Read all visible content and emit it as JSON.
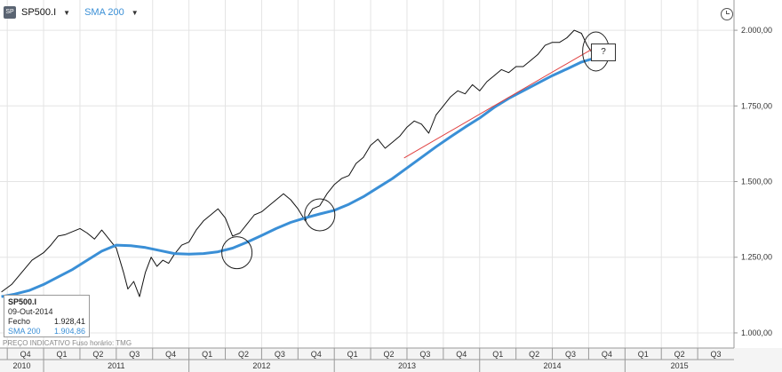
{
  "toolbar": {
    "icon_text": "SP",
    "symbol": "SP500.I",
    "indicator": "SMA 200",
    "arrow": "▼"
  },
  "info_box": {
    "symbol": "SP500.I",
    "date": "09-Out-2014",
    "close_label": "Fecho",
    "close_value": "1.928,41",
    "sma_label": "SMA 200",
    "sma_value": "1.904,86"
  },
  "footer_note": "PREÇO INDICATIVO   Fuso horário: TMG",
  "annotation": "?",
  "colors": {
    "price": "#111111",
    "sma": "#3a8fd6",
    "trend": "#e04040",
    "grid": "#e4e4e4",
    "axis": "#999999"
  },
  "chart_data": {
    "type": "line",
    "title": "",
    "ylim": [
      950,
      2100
    ],
    "y_ticks": [
      {
        "value": 1000,
        "label": "1.000,00"
      },
      {
        "value": 1250,
        "label": "1.250,00"
      },
      {
        "value": 1500,
        "label": "1.500,00"
      },
      {
        "value": 1750,
        "label": "1.750,00"
      },
      {
        "value": 2000,
        "label": "2.000,00"
      }
    ],
    "xlim": [
      2010.7,
      2015.75
    ],
    "quarters": [
      {
        "label": "Q4",
        "start": 2010.75
      },
      {
        "label": "Q1",
        "start": 2011.0
      },
      {
        "label": "Q2",
        "start": 2011.25
      },
      {
        "label": "Q3",
        "start": 2011.5
      },
      {
        "label": "Q4",
        "start": 2011.75
      },
      {
        "label": "Q1",
        "start": 2012.0
      },
      {
        "label": "Q2",
        "start": 2012.25
      },
      {
        "label": "Q3",
        "start": 2012.5
      },
      {
        "label": "Q4",
        "start": 2012.75
      },
      {
        "label": "Q1",
        "start": 2013.0
      },
      {
        "label": "Q2",
        "start": 2013.25
      },
      {
        "label": "Q3",
        "start": 2013.5
      },
      {
        "label": "Q4",
        "start": 2013.75
      },
      {
        "label": "Q1",
        "start": 2014.0
      },
      {
        "label": "Q2",
        "start": 2014.25
      },
      {
        "label": "Q3",
        "start": 2014.5
      },
      {
        "label": "Q4",
        "start": 2014.75
      },
      {
        "label": "Q1",
        "start": 2015.0
      },
      {
        "label": "Q2",
        "start": 2015.25
      },
      {
        "label": "Q3",
        "start": 2015.5
      }
    ],
    "years": [
      {
        "label": "2010",
        "value": 2010
      },
      {
        "label": "2011",
        "value": 2011
      },
      {
        "label": "2012",
        "value": 2012
      },
      {
        "label": "2013",
        "value": 2013
      },
      {
        "label": "2014",
        "value": 2014
      },
      {
        "label": "2015",
        "value": 2015
      }
    ],
    "series": [
      {
        "key": "price",
        "x": [
          2010.71,
          2010.78,
          2010.85,
          2010.92,
          2011.0,
          2011.05,
          2011.1,
          2011.15,
          2011.2,
          2011.25,
          2011.3,
          2011.35,
          2011.4,
          2011.45,
          2011.5,
          2011.55,
          2011.58,
          2011.62,
          2011.66,
          2011.7,
          2011.74,
          2011.78,
          2011.82,
          2011.86,
          2011.9,
          2011.95,
          2012.0,
          2012.05,
          2012.1,
          2012.15,
          2012.2,
          2012.25,
          2012.3,
          2012.35,
          2012.4,
          2012.45,
          2012.5,
          2012.55,
          2012.6,
          2012.65,
          2012.7,
          2012.75,
          2012.8,
          2012.85,
          2012.9,
          2012.95,
          2013.0,
          2013.05,
          2013.1,
          2013.15,
          2013.2,
          2013.25,
          2013.3,
          2013.35,
          2013.4,
          2013.45,
          2013.5,
          2013.55,
          2013.6,
          2013.65,
          2013.7,
          2013.75,
          2013.8,
          2013.85,
          2013.9,
          2013.95,
          2014.0,
          2014.05,
          2014.1,
          2014.15,
          2014.2,
          2014.25,
          2014.3,
          2014.35,
          2014.4,
          2014.45,
          2014.5,
          2014.55,
          2014.6,
          2014.65,
          2014.7,
          2014.74,
          2014.77
        ],
        "y": [
          1135,
          1160,
          1200,
          1240,
          1265,
          1290,
          1320,
          1325,
          1335,
          1345,
          1330,
          1310,
          1340,
          1310,
          1280,
          1200,
          1145,
          1170,
          1120,
          1200,
          1250,
          1220,
          1240,
          1230,
          1260,
          1290,
          1300,
          1340,
          1370,
          1390,
          1410,
          1380,
          1320,
          1330,
          1360,
          1390,
          1400,
          1420,
          1440,
          1460,
          1440,
          1410,
          1370,
          1410,
          1420,
          1460,
          1490,
          1510,
          1520,
          1560,
          1580,
          1620,
          1640,
          1610,
          1630,
          1650,
          1680,
          1700,
          1690,
          1660,
          1720,
          1750,
          1780,
          1800,
          1790,
          1820,
          1800,
          1830,
          1850,
          1870,
          1860,
          1880,
          1880,
          1900,
          1920,
          1950,
          1960,
          1960,
          1975,
          2000,
          1990,
          1950,
          1928
        ]
      },
      {
        "key": "sma",
        "x": [
          2010.71,
          2010.8,
          2010.9,
          2011.0,
          2011.1,
          2011.2,
          2011.3,
          2011.4,
          2011.5,
          2011.6,
          2011.7,
          2011.8,
          2011.9,
          2012.0,
          2012.1,
          2012.2,
          2012.3,
          2012.4,
          2012.5,
          2012.6,
          2012.7,
          2012.8,
          2012.9,
          2013.0,
          2013.1,
          2013.2,
          2013.3,
          2013.4,
          2013.5,
          2013.6,
          2013.7,
          2013.8,
          2013.9,
          2014.0,
          2014.1,
          2014.2,
          2014.3,
          2014.4,
          2014.5,
          2014.6,
          2014.7,
          2014.77
        ],
        "y": [
          1120,
          1128,
          1140,
          1160,
          1185,
          1210,
          1240,
          1270,
          1290,
          1288,
          1282,
          1272,
          1262,
          1260,
          1262,
          1268,
          1280,
          1300,
          1322,
          1345,
          1365,
          1380,
          1393,
          1405,
          1425,
          1450,
          1480,
          1510,
          1545,
          1580,
          1615,
          1648,
          1680,
          1710,
          1745,
          1775,
          1800,
          1825,
          1850,
          1872,
          1895,
          1905
        ]
      },
      {
        "key": "trend",
        "x": [
          2013.48,
          2014.8
        ],
        "y": [
          1578,
          1945
        ]
      }
    ]
  }
}
